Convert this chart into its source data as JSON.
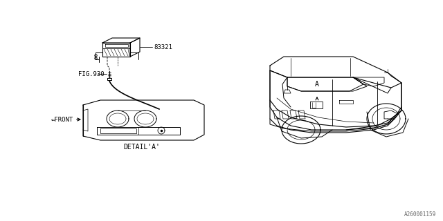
{
  "bg_color": "#ffffff",
  "line_color": "#000000",
  "part_number": "83321",
  "fig_ref": "FIG.930",
  "detail_label": "DETAIL'A'",
  "front_label": "⇐FRONT",
  "arrow_a_label": "A",
  "diagram_id": "A260001159",
  "label_fontsize": 6.5
}
